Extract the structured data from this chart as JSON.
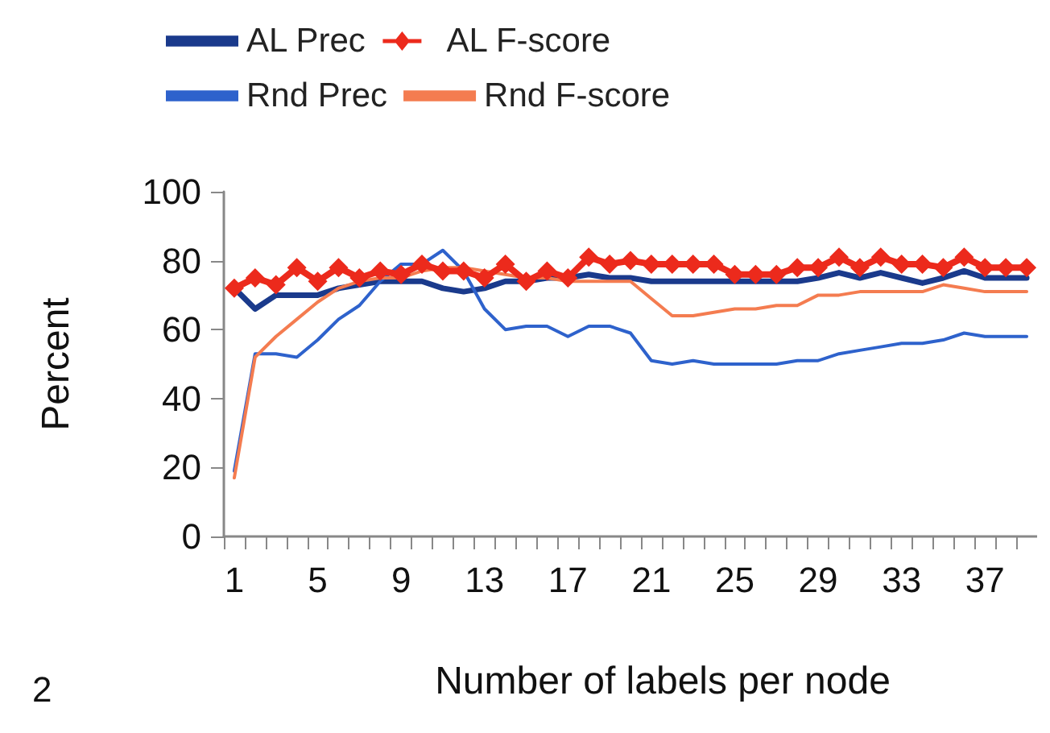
{
  "chart_data": {
    "type": "line",
    "xlabel": "Number of labels per node",
    "ylabel": "Percent",
    "annotations": [
      "2"
    ],
    "categories": [
      "1",
      null,
      null,
      null,
      "5",
      null,
      null,
      null,
      "9",
      null,
      null,
      null,
      "13",
      null,
      null,
      null,
      "17",
      null,
      null,
      null,
      "21",
      null,
      null,
      null,
      "25",
      null,
      null,
      null,
      "29",
      null,
      null,
      null,
      "33",
      null,
      null,
      null,
      "37",
      null,
      null
    ],
    "ylim": [
      0,
      100
    ],
    "yticks": [
      0,
      20,
      40,
      60,
      80,
      100
    ],
    "grid": false,
    "legend": "top",
    "line_style": "solid",
    "series": [
      {
        "name": "AL Prec",
        "color": "#1a3a8c",
        "marker": "none",
        "values": [
          72,
          66,
          70,
          70,
          70,
          72,
          73,
          74,
          74,
          74,
          72,
          71,
          72,
          74,
          74,
          75,
          75,
          76,
          75,
          75,
          74,
          74,
          74,
          74,
          74,
          74,
          74,
          74,
          75,
          76.5,
          75,
          76.5,
          75,
          73.5,
          75,
          77,
          75,
          75,
          75
        ]
      },
      {
        "name": "AL F-score",
        "color": "#ec2a1c",
        "marker": "diamond",
        "values": [
          72,
          75,
          73,
          78,
          74,
          78,
          75,
          77,
          76,
          79,
          77,
          77,
          75,
          79,
          74,
          77,
          75,
          81,
          79,
          80,
          79,
          79,
          79,
          79,
          76,
          76,
          76,
          78,
          78,
          81,
          78,
          81,
          79,
          79,
          78,
          81,
          78,
          78,
          78
        ]
      },
      {
        "name": "Rnd Prec",
        "color": "#2e62cc",
        "marker": "none",
        "values": [
          19,
          53,
          53,
          52,
          57,
          63,
          67,
          74,
          79,
          79,
          83,
          77,
          66,
          60,
          61,
          61,
          58,
          61,
          61,
          59,
          51,
          50,
          51,
          50,
          50,
          50,
          50,
          51,
          51,
          53,
          54,
          55,
          56,
          56,
          57,
          59,
          58,
          58,
          58
        ]
      },
      {
        "name": "Rnd F-score",
        "color": "#f47c50",
        "marker": "none",
        "values": [
          17,
          52,
          58,
          63,
          68,
          72,
          74,
          75,
          75,
          77,
          78,
          78,
          77,
          76,
          75,
          75,
          74,
          74,
          74,
          74,
          69,
          64,
          64,
          65,
          66,
          66,
          67,
          67,
          70,
          70,
          71,
          71,
          71,
          71,
          73,
          72,
          71,
          71,
          71
        ]
      }
    ]
  }
}
